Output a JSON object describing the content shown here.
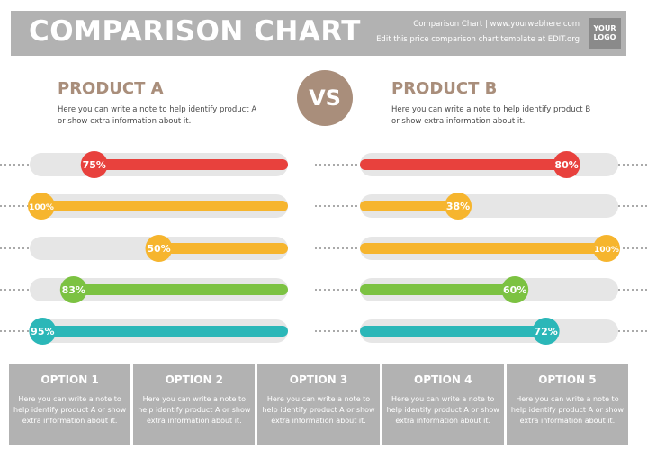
{
  "header": {
    "title": "COMPARISON CHART",
    "line1": "Comparison Chart | www.yourwebhere.com",
    "line2": "Edit this price comparison chart template at EDIT.org",
    "logo_line1": "YOUR",
    "logo_line2": "LOGO"
  },
  "vs_label": "VS",
  "product_a": {
    "title": "PRODUCT A",
    "note_line1": "Here you can write a note to help identify product A",
    "note_line2": "or show extra information about it."
  },
  "product_b": {
    "title": "PRODUCT B",
    "note_line1": "Here you can write a note to help identify product B",
    "note_line2": "or show extra information about it."
  },
  "options": [
    {
      "title": "OPTION 1",
      "note": [
        "Here you can write a note to",
        "help identify product A or show",
        "extra information about it."
      ]
    },
    {
      "title": "OPTION 2",
      "note": [
        "Here you can write a note to",
        "help identify product A or show",
        "extra information about it."
      ]
    },
    {
      "title": "OPTION 3",
      "note": [
        "Here you can write a note to",
        "help identify product A or show",
        "extra information about it."
      ]
    },
    {
      "title": "OPTION 4",
      "note": [
        "Here you can write a note to",
        "help identify product A or show",
        "extra information about it."
      ]
    },
    {
      "title": "OPTION 5",
      "note": [
        "Here you can write a note to",
        "help identify product A or show",
        "extra information about it."
      ]
    }
  ],
  "chart_data": {
    "type": "bar",
    "categories": [
      "OPTION 1",
      "OPTION 2",
      "OPTION 3",
      "OPTION 4",
      "OPTION 5"
    ],
    "series": [
      {
        "name": "PRODUCT A",
        "values": [
          75,
          100,
          50,
          83,
          95
        ],
        "labels": [
          "75%",
          "100%",
          "50%",
          "83%",
          "95%"
        ]
      },
      {
        "name": "PRODUCT B",
        "values": [
          80,
          38,
          100,
          60,
          72
        ],
        "labels": [
          "80%",
          "38%",
          "100%",
          "60%",
          "72%"
        ]
      }
    ],
    "ylim": [
      0,
      100
    ],
    "row_colors": [
      "#e8413d",
      "#f6b52e",
      "#f6b52e",
      "#7cc242",
      "#2bb7b8"
    ],
    "track_color": "#e6e6e6"
  }
}
